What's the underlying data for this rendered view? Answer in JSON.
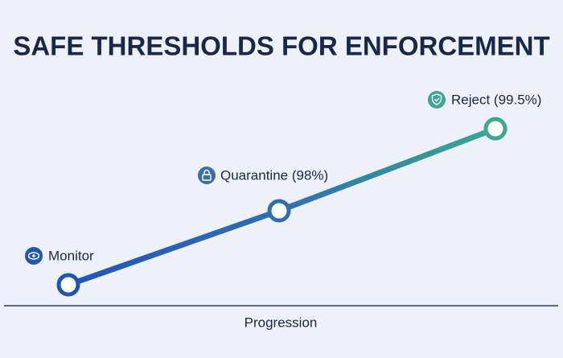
{
  "title": "SAFE THRESHOLDS FOR ENFORCEMENT",
  "nodes": [
    {
      "label": "Monitor"
    },
    {
      "label": "Quarantine (98%)"
    },
    {
      "label": "Reject (99.5%)"
    }
  ],
  "axis_label": "Progression"
}
